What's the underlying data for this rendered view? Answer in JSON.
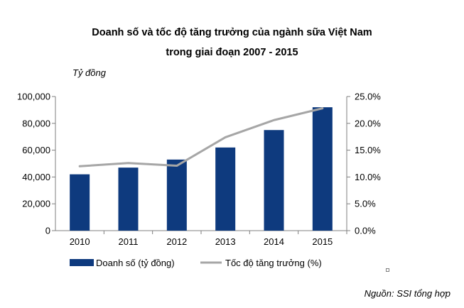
{
  "chart_data": {
    "type": "bar+line",
    "title_line1": "Doanh  số và tốc độ tăng trưởng của ngành  sữa Việt Nam",
    "title_line2": "trong giai đoạn 2007 - 2015",
    "y_left_label": "Tỷ đồng",
    "categories": [
      "2010",
      "2011",
      "2012",
      "2013",
      "2014",
      "2015"
    ],
    "series": [
      {
        "name": "Doanh số (tỷ đồng)",
        "type": "bar",
        "axis": "left",
        "color": "#0e3a7e",
        "values": [
          42000,
          47000,
          53000,
          62000,
          75000,
          92000
        ]
      },
      {
        "name": "Tốc độ tăng trưởng (%)",
        "type": "line",
        "axis": "right",
        "color": "#a6a6a6",
        "values": [
          12.0,
          12.6,
          12.1,
          17.4,
          20.6,
          22.8
        ]
      }
    ],
    "y_left": {
      "min": 0,
      "max": 100000,
      "ticks": [
        "0",
        "20,000",
        "40,000",
        "60,000",
        "80,000",
        "100,000"
      ]
    },
    "y_right": {
      "min": 0,
      "max": 25,
      "ticks": [
        "0.0%",
        "5.0%",
        "10.0%",
        "15.0%",
        "20.0%",
        "25.0%"
      ]
    },
    "source": "Nguồn: SSI tổng hợp"
  }
}
